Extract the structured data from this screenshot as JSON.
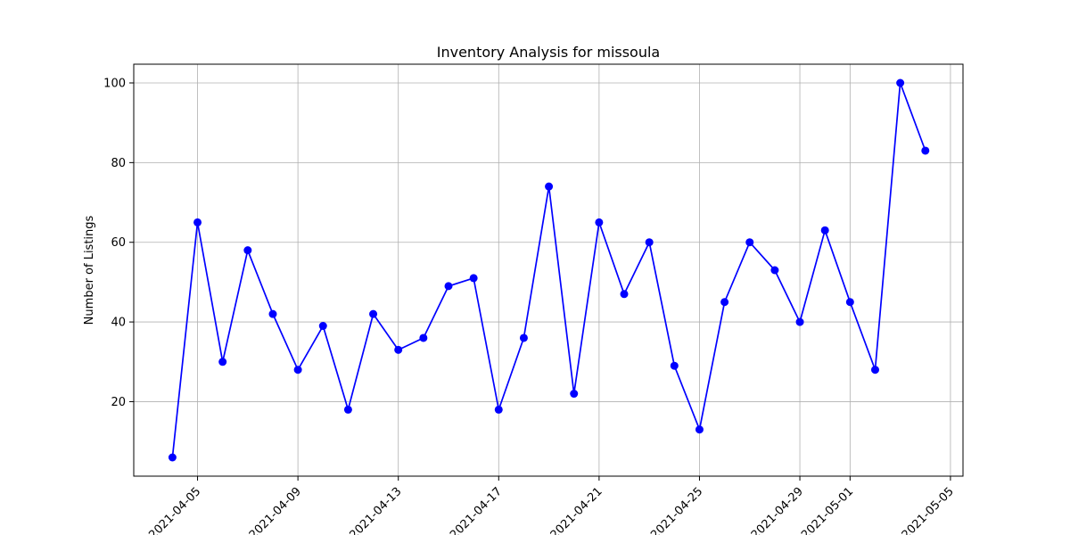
{
  "chart_data": {
    "type": "line",
    "title": "Inventory Analysis for missoula",
    "xlabel": "",
    "ylabel": "Number of Listings",
    "grid": true,
    "line_color": "#0000ff",
    "marker_color": "#0000ff",
    "x": [
      "2021-04-04",
      "2021-04-05",
      "2021-04-06",
      "2021-04-07",
      "2021-04-08",
      "2021-04-09",
      "2021-04-10",
      "2021-04-11",
      "2021-04-12",
      "2021-04-13",
      "2021-04-14",
      "2021-04-15",
      "2021-04-16",
      "2021-04-17",
      "2021-04-18",
      "2021-04-19",
      "2021-04-20",
      "2021-04-21",
      "2021-04-22",
      "2021-04-23",
      "2021-04-24",
      "2021-04-25",
      "2021-04-26",
      "2021-04-27",
      "2021-04-28",
      "2021-04-29",
      "2021-04-30",
      "2021-05-01",
      "2021-05-02",
      "2021-05-03",
      "2021-05-04"
    ],
    "values": [
      6,
      65,
      30,
      58,
      42,
      28,
      39,
      18,
      42,
      33,
      36,
      49,
      51,
      18,
      36,
      74,
      22,
      65,
      47,
      60,
      29,
      13,
      45,
      60,
      53,
      40,
      63,
      45,
      28,
      100,
      83
    ],
    "xlim": [
      "2021-04-02T11:00",
      "2021-05-05T12:00"
    ],
    "ylim": [
      1.3,
      104.7
    ],
    "x_ticks": [
      "2021-04-05",
      "2021-04-09",
      "2021-04-13",
      "2021-04-17",
      "2021-04-21",
      "2021-04-25",
      "2021-04-29",
      "2021-05-01",
      "2021-05-05"
    ],
    "y_ticks": [
      20,
      40,
      60,
      80,
      100
    ]
  }
}
